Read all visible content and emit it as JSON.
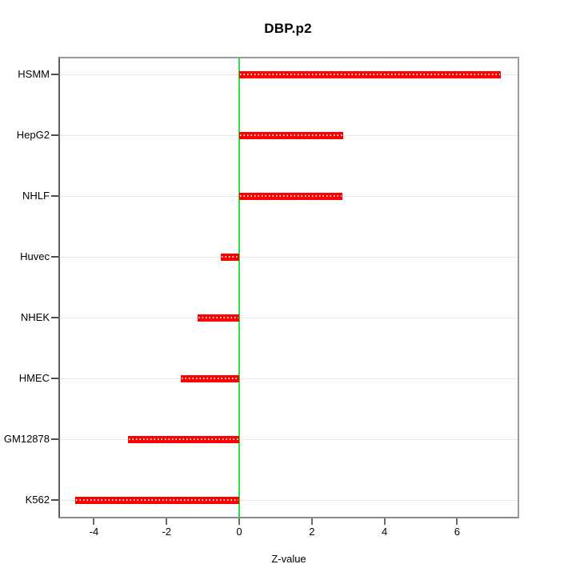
{
  "chart_data": {
    "type": "bar",
    "orientation": "horizontal",
    "title": "DBP.p2",
    "xlabel": "Z-value",
    "ylabel": "",
    "categories": [
      "HSMM",
      "HepG2",
      "NHLF",
      "Huvec",
      "NHEK",
      "HMEC",
      "GM12878",
      "K562"
    ],
    "values": [
      7.2,
      2.86,
      2.84,
      -0.51,
      -1.15,
      -1.61,
      -3.06,
      -4.52
    ],
    "xticks": [
      -4,
      -2,
      0,
      2,
      4,
      6
    ],
    "xlim": [
      -4.98,
      7.71
    ],
    "grid": "horizontal-dotted",
    "legend": "none",
    "bar_color": "#fb0000",
    "zero_line_color": "#33dd44",
    "grid_color": "#d2d2d2",
    "axis_box_color": "#9a9a9a",
    "tick_color": "#6b6b6b"
  }
}
